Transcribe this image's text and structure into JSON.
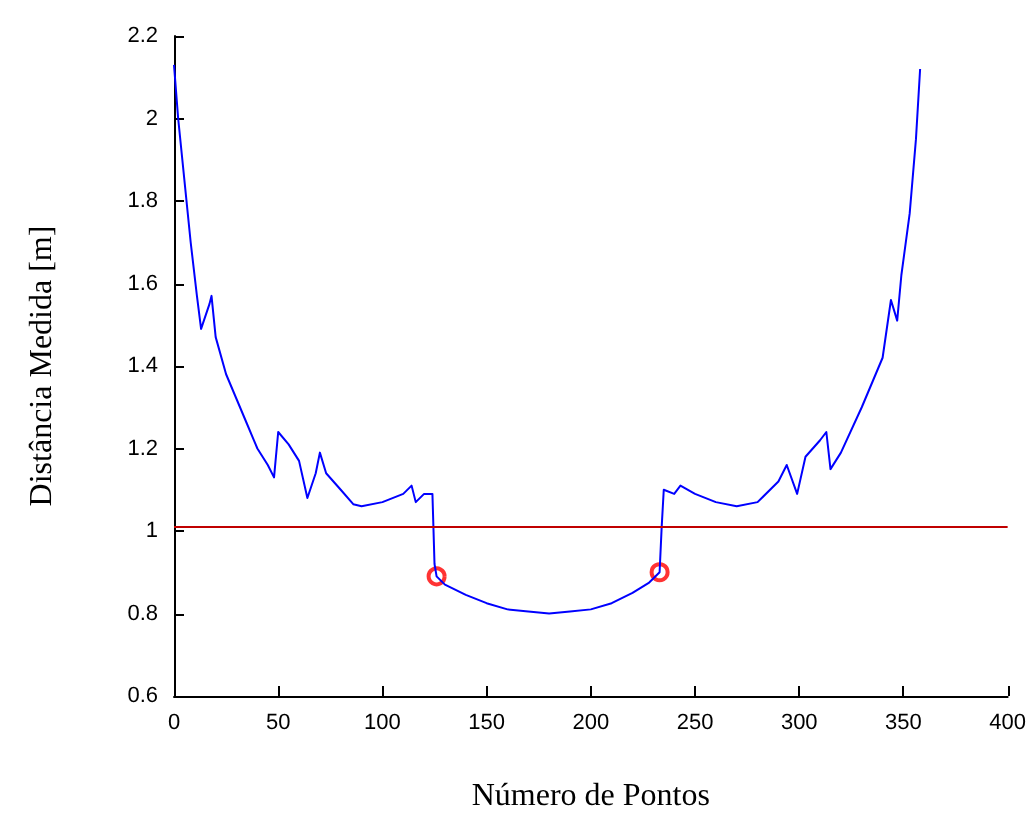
{
  "chart_data": {
    "type": "line",
    "xlabel": "Número de Pontos",
    "ylabel": "Distância Medida [m]",
    "xlim": [
      0,
      400
    ],
    "xticks": [
      0,
      50,
      100,
      150,
      200,
      250,
      300,
      350,
      400
    ],
    "ylim": [
      0.6,
      2.2
    ],
    "yticks": [
      0.6,
      0.8,
      1,
      1.2,
      1.4,
      1.6,
      1.8,
      2,
      2.2
    ],
    "grid": false,
    "series": [
      {
        "color": "#0000ff",
        "marker": "none",
        "line_style": "solid",
        "x": [
          0,
          2,
          5,
          8,
          11,
          13,
          17,
          18,
          20,
          25,
          30,
          35,
          40,
          45,
          48,
          50,
          55,
          60,
          64,
          68,
          70,
          73,
          80,
          86,
          90,
          100,
          110,
          114,
          116,
          120,
          124,
          125,
          126,
          130,
          140,
          150,
          160,
          170,
          180,
          190,
          200,
          210,
          220,
          228,
          233,
          234,
          235,
          240,
          243,
          250,
          260,
          270,
          280,
          290,
          294,
          299,
          303,
          310,
          313,
          315,
          320,
          330,
          340,
          344,
          347,
          349,
          353,
          356,
          358
        ],
        "values": [
          2.13,
          2.0,
          1.85,
          1.7,
          1.57,
          1.49,
          1.55,
          1.57,
          1.47,
          1.38,
          1.32,
          1.26,
          1.2,
          1.16,
          1.13,
          1.24,
          1.21,
          1.17,
          1.08,
          1.14,
          1.19,
          1.14,
          1.1,
          1.065,
          1.06,
          1.07,
          1.09,
          1.11,
          1.07,
          1.09,
          1.09,
          0.92,
          0.89,
          0.87,
          0.845,
          0.825,
          0.81,
          0.805,
          0.8,
          0.805,
          0.81,
          0.825,
          0.85,
          0.875,
          0.9,
          1.01,
          1.1,
          1.09,
          1.11,
          1.09,
          1.07,
          1.06,
          1.07,
          1.12,
          1.16,
          1.09,
          1.18,
          1.22,
          1.24,
          1.15,
          1.19,
          1.3,
          1.42,
          1.56,
          1.51,
          1.62,
          1.77,
          1.95,
          2.12
        ]
      },
      {
        "type": "scatter",
        "color": "#ff0000",
        "marker": "circle",
        "x": [
          126,
          233
        ],
        "values": [
          0.89,
          0.9
        ]
      }
    ],
    "ref_lines": [
      {
        "axis": "y",
        "value": 1.015,
        "color": "#c00000",
        "line_style": "solid"
      }
    ]
  }
}
